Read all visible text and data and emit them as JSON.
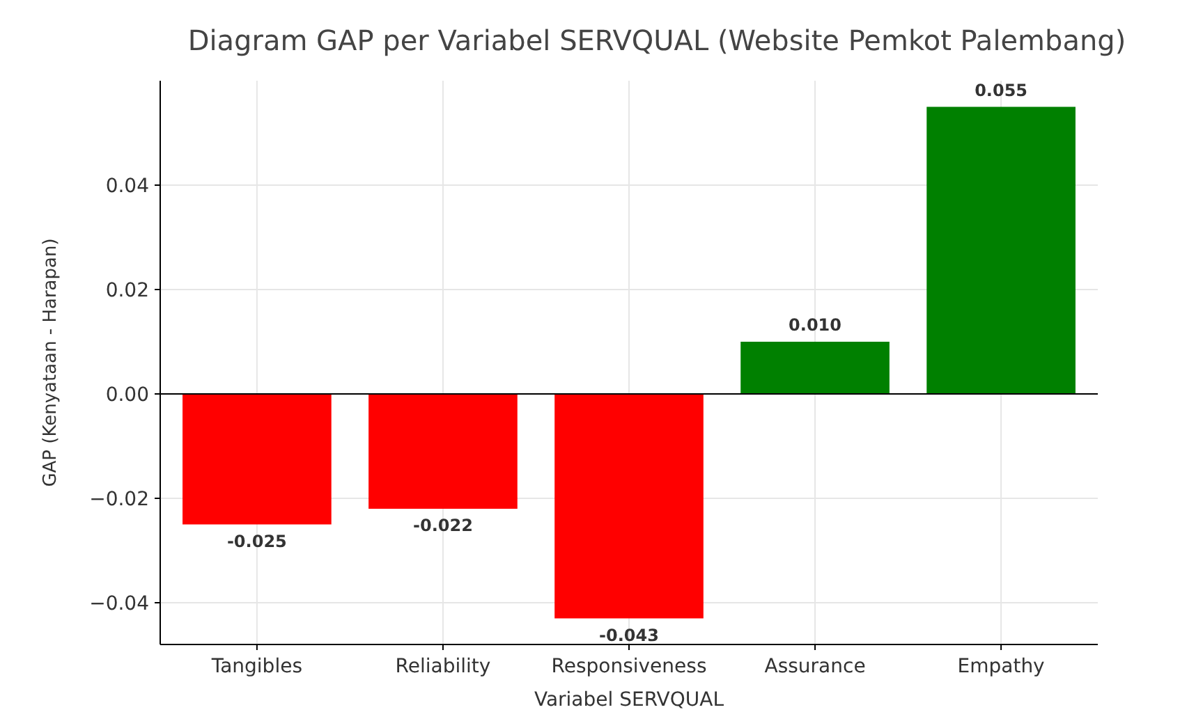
{
  "chart_data": {
    "type": "bar",
    "title": "Diagram GAP per Variabel SERVQUAL (Website Pemkot Palembang)",
    "xlabel": "Variabel SERVQUAL",
    "ylabel": "GAP (Kenyataan - Harapan)",
    "categories": [
      "Tangibles",
      "Reliability",
      "Responsiveness",
      "Assurance",
      "Empathy"
    ],
    "values": [
      -0.025,
      -0.022,
      -0.043,
      0.01,
      0.055
    ],
    "colors": [
      "#ff0000",
      "#ff0000",
      "#ff0000",
      "#008000",
      "#008000"
    ],
    "value_labels": [
      "-0.025",
      "-0.022",
      "-0.043",
      "0.010",
      "0.055"
    ],
    "ylim": [
      -0.048,
      0.06
    ],
    "yticks": [
      {
        "value": -0.04,
        "label": "−0.04"
      },
      {
        "value": -0.02,
        "label": "−0.02"
      },
      {
        "value": 0,
        "label": "0.00"
      },
      {
        "value": 0.02,
        "label": "0.02"
      },
      {
        "value": 0.04,
        "label": "0.04"
      }
    ],
    "grid": true,
    "ref_lines": [
      {
        "axis": "y",
        "value": 0,
        "color": "#000000"
      }
    ]
  }
}
